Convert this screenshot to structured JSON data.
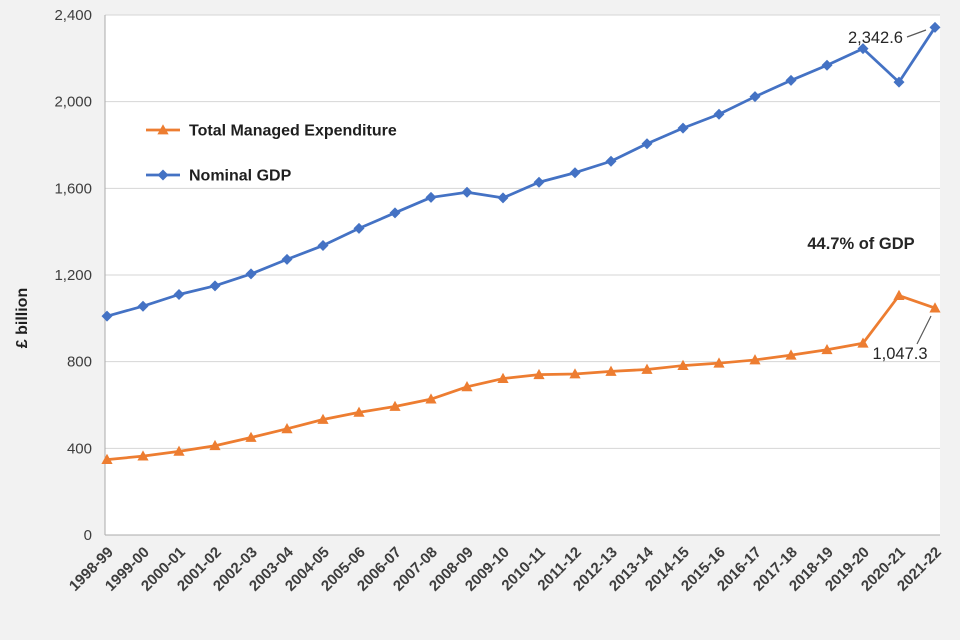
{
  "colors": {
    "page_bg": "#F2F2F2",
    "plot_bg": "#FFFFFF",
    "gridline": "#D6D6D6",
    "axis_line": "#ABABAB",
    "tick_text": "#3D3D3D",
    "label_text": "#1F1F1F",
    "leader_line": "#595959",
    "tme_orange": "#ED7D31",
    "gdp_blue": "#4472C4"
  },
  "chart_data": {
    "type": "line",
    "title": "",
    "xlabel": "",
    "ylabel": "£ billion",
    "ylim": [
      0,
      2400
    ],
    "grid": true,
    "legend_position": "inside-top-left",
    "ytick_values": [
      0,
      400,
      800,
      1200,
      1600,
      2000,
      2400
    ],
    "ytick_labels": [
      "0",
      "400",
      "800",
      "1,200",
      "1,600",
      "2,000",
      "2,400"
    ],
    "categories": [
      "1998-99",
      "1999-00",
      "2000-01",
      "2001-02",
      "2002-03",
      "2003-04",
      "2004-05",
      "2005-06",
      "2006-07",
      "2007-08",
      "2008-09",
      "2009-10",
      "2010-11",
      "2011-12",
      "2012-13",
      "2013-14",
      "2014-15",
      "2015-16",
      "2016-17",
      "2017-18",
      "2018-19",
      "2019-20",
      "2020-21",
      "2021-22"
    ],
    "series": [
      {
        "name": "Total Managed Expenditure",
        "marker": "triangle",
        "color": "#ED7D31",
        "values": [
          348,
          364,
          386,
          412,
          450,
          490,
          533,
          566,
          593,
          627,
          684,
          722,
          740,
          743,
          755,
          764,
          782,
          793,
          808,
          830,
          855,
          885,
          1105,
          1047.3
        ]
      },
      {
        "name": "Nominal GDP",
        "marker": "diamond",
        "color": "#4472C4",
        "values": [
          1010,
          1056,
          1110,
          1150,
          1205,
          1272,
          1336,
          1415,
          1487,
          1558,
          1582,
          1556,
          1628,
          1672,
          1725,
          1806,
          1878,
          1942,
          2023,
          2098,
          2168,
          2245,
          2090,
          2342.6
        ]
      }
    ],
    "annotations": [
      {
        "id": "gdp-final-value",
        "text": "2,342.6"
      },
      {
        "id": "tme-share-of-gdp",
        "text": "44.7% of GDP"
      },
      {
        "id": "tme-final-value",
        "text": "1,047.3"
      }
    ]
  }
}
